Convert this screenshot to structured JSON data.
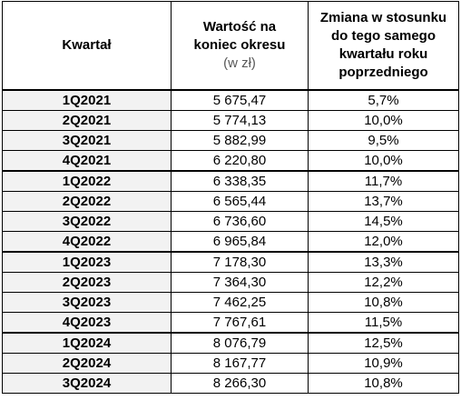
{
  "table": {
    "headers": {
      "quarter": "Kwartał",
      "value_line1": "Wartość na",
      "value_line2": "koniec okresu",
      "value_unit": "(w zł)",
      "change_line1": "Zmiana w stosunku",
      "change_line2": "do tego samego",
      "change_line3": "kwartału roku",
      "change_line4": "poprzedniego"
    },
    "rows": [
      {
        "quarter": "1Q2021",
        "value": "5 675,47",
        "change": "5,7%"
      },
      {
        "quarter": "2Q2021",
        "value": "5 774,13",
        "change": "10,0%"
      },
      {
        "quarter": "3Q2021",
        "value": "5 882,99",
        "change": "9,5%"
      },
      {
        "quarter": "4Q2021",
        "value": "6 220,80",
        "change": "10,0%"
      },
      {
        "quarter": "1Q2022",
        "value": "6 338,35",
        "change": "11,7%"
      },
      {
        "quarter": "2Q2022",
        "value": "6 565,44",
        "change": "13,7%"
      },
      {
        "quarter": "3Q2022",
        "value": "6 736,60",
        "change": "14,5%"
      },
      {
        "quarter": "4Q2022",
        "value": "6 965,84",
        "change": "12,0%"
      },
      {
        "quarter": "1Q2023",
        "value": "7 178,30",
        "change": "13,3%"
      },
      {
        "quarter": "2Q2023",
        "value": "7 364,30",
        "change": "12,2%"
      },
      {
        "quarter": "3Q2023",
        "value": "7 462,25",
        "change": "10,8%"
      },
      {
        "quarter": "4Q2023",
        "value": "7 767,61",
        "change": "11,5%"
      },
      {
        "quarter": "1Q2024",
        "value": "8 076,79",
        "change": "12,5%"
      },
      {
        "quarter": "2Q2024",
        "value": "8 167,77",
        "change": "10,9%"
      },
      {
        "quarter": "3Q2024",
        "value": "8 266,30",
        "change": "10,8%"
      }
    ]
  }
}
